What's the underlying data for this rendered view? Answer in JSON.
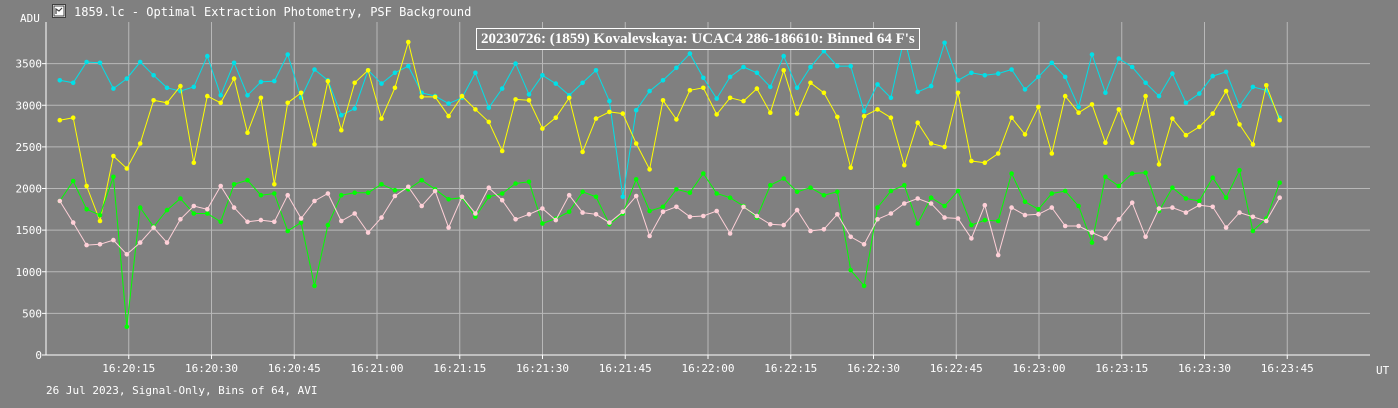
{
  "window": {
    "title": "1859.lc - Optimal Extraction Photometry, PSF Background",
    "icon": "chart-window-icon"
  },
  "footer": {
    "text": "26 Jul 2023, Signal-Only, Bins of 64, AVI"
  },
  "chart_data": {
    "type": "line",
    "title": "20230726: (1859) Kovalevskaya: UCAC4 286-186610: Binned 64 F's",
    "ylabel": "ADU",
    "xlabel": "UT",
    "ylim": [
      0,
      4000
    ],
    "xlim": [
      "16:20:00",
      "16:24:00"
    ],
    "grid": true,
    "yticks": [
      0,
      500,
      1000,
      1500,
      2000,
      2500,
      3000,
      3500
    ],
    "xticks": [
      "16:20:15",
      "16:20:30",
      "16:20:45",
      "16:21:00",
      "16:21:15",
      "16:21:30",
      "16:21:45",
      "16:22:00",
      "16:22:15",
      "16:22:30",
      "16:22:45",
      "16:23:00",
      "16:23:15",
      "16:23:30",
      "16:23:45"
    ],
    "x_start": "16:20:02.5",
    "x_step_seconds": 2.43,
    "series": [
      {
        "color": "#00e0e8",
        "values": [
          3300,
          3270,
          3520,
          3510,
          3200,
          3320,
          3520,
          3360,
          3210,
          3170,
          3220,
          3590,
          3120,
          3510,
          3120,
          3280,
          3290,
          3610,
          3090,
          3430,
          3300,
          2880,
          2960,
          3420,
          3260,
          3390,
          3470,
          3150,
          3110,
          3020,
          3090,
          3390,
          2970,
          3200,
          3500,
          3130,
          3360,
          3260,
          3120,
          3270,
          3420,
          3050,
          1900,
          2940,
          3170,
          3300,
          3450,
          3620,
          3330,
          3080,
          3340,
          3460,
          3390,
          3220,
          3590,
          3210,
          3460,
          3650,
          3470,
          3470,
          2930,
          3250,
          3090,
          3810,
          3160,
          3230,
          3750,
          3300,
          3390,
          3360,
          3380,
          3430,
          3190,
          3340,
          3510,
          3340,
          2980,
          3610,
          3150,
          3560,
          3460,
          3270,
          3110,
          3380,
          3030,
          3140,
          3350,
          3400,
          2990,
          3220,
          3180,
          2850
        ]
      },
      {
        "color": "#ffff00",
        "values": [
          2820,
          2850,
          2030,
          1610,
          2390,
          2240,
          2540,
          3060,
          3030,
          3230,
          2310,
          3110,
          3030,
          3320,
          2670,
          3090,
          2050,
          3030,
          3150,
          2530,
          3290,
          2700,
          3270,
          3420,
          2840,
          3210,
          3760,
          3100,
          3100,
          2870,
          3110,
          2950,
          2800,
          2450,
          3070,
          3060,
          2720,
          2850,
          3090,
          2440,
          2840,
          2920,
          2900,
          2540,
          2230,
          3060,
          2830,
          3180,
          3210,
          2890,
          3090,
          3050,
          3200,
          2910,
          3420,
          2900,
          3270,
          3150,
          2860,
          2250,
          2870,
          2950,
          2850,
          2280,
          2790,
          2540,
          2500,
          3150,
          2330,
          2310,
          2420,
          2850,
          2650,
          2980,
          2420,
          3110,
          2910,
          3010,
          2550,
          2950,
          2550,
          3110,
          2290,
          2840,
          2640,
          2740,
          2900,
          3170,
          2770,
          2530,
          3240,
          2820
        ]
      },
      {
        "color": "#00ff00",
        "values": [
          1850,
          2090,
          1750,
          1680,
          2140,
          340,
          1770,
          1540,
          1740,
          1880,
          1700,
          1700,
          1600,
          2050,
          2100,
          1920,
          1940,
          1490,
          1590,
          830,
          1560,
          1920,
          1950,
          1950,
          2050,
          1980,
          1990,
          2100,
          1990,
          1870,
          1890,
          1660,
          1900,
          1940,
          2060,
          2080,
          1580,
          1640,
          1720,
          1960,
          1900,
          1570,
          1700,
          2110,
          1730,
          1780,
          1990,
          1950,
          2180,
          1940,
          1890,
          1790,
          1650,
          2040,
          2120,
          1960,
          2010,
          1920,
          1960,
          1020,
          830,
          1770,
          1970,
          2040,
          1580,
          1890,
          1790,
          1970,
          1560,
          1620,
          1610,
          2180,
          1840,
          1750,
          1940,
          1970,
          1790,
          1350,
          2140,
          2030,
          2180,
          2190,
          1730,
          2010,
          1880,
          1850,
          2130,
          1890,
          2220,
          1490,
          1640,
          2070
        ]
      },
      {
        "color": "#ffd0d8",
        "values": [
          1850,
          1590,
          1320,
          1330,
          1380,
          1210,
          1350,
          1530,
          1350,
          1630,
          1790,
          1750,
          2030,
          1770,
          1600,
          1620,
          1600,
          1920,
          1640,
          1850,
          1940,
          1610,
          1700,
          1470,
          1650,
          1910,
          2020,
          1790,
          1970,
          1530,
          1900,
          1700,
          2010,
          1860,
          1630,
          1690,
          1760,
          1620,
          1920,
          1710,
          1690,
          1590,
          1720,
          1910,
          1430,
          1720,
          1780,
          1660,
          1670,
          1730,
          1460,
          1780,
          1670,
          1570,
          1560,
          1740,
          1490,
          1510,
          1690,
          1420,
          1330,
          1630,
          1700,
          1820,
          1880,
          1820,
          1650,
          1640,
          1400,
          1800,
          1200,
          1770,
          1680,
          1690,
          1770,
          1550,
          1550,
          1470,
          1400,
          1630,
          1830,
          1420,
          1760,
          1770,
          1710,
          1800,
          1780,
          1530,
          1710,
          1660,
          1610,
          1890
        ]
      }
    ]
  }
}
